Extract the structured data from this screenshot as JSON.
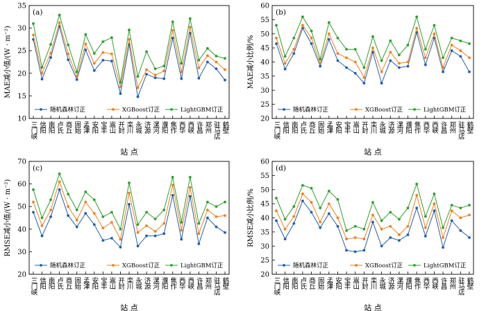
{
  "chart_data": [
    {
      "type": "line",
      "panel_label": "(a)",
      "ylabel": "MAE减小值/(W · m⁻²)",
      "xlabel": "站  点",
      "ylim": [
        10,
        35
      ],
      "yticks": [
        10,
        15,
        20,
        25,
        30,
        35
      ],
      "categories": [
        "三门峡",
        "信阳",
        "南阳",
        "卢氏",
        "商丘",
        "固始",
        "孟津",
        "安阳",
        "宝丰",
        "嵩山",
        "开封",
        "栾川",
        "永城",
        "济源",
        "漯河",
        "濮阳",
        "焦作",
        "西华",
        "西峡",
        "许昌",
        "郑州",
        "驻马店",
        "鹤壁"
      ],
      "series": [
        {
          "name": "随机森林订正",
          "color": "#1f5fad",
          "marker": "circle",
          "values": [
            27.5,
            18.7,
            23.5,
            30.4,
            23.0,
            18.6,
            25.2,
            20.6,
            22.9,
            22.7,
            15.5,
            26.4,
            14.8,
            19.8,
            19.0,
            18.8,
            27.8,
            18.8,
            28.9,
            18.9,
            22.5,
            21.0,
            18.5
          ]
        },
        {
          "name": "XGBoost订正",
          "color": "#ef7f1a",
          "marker": "circle",
          "values": [
            28.5,
            20.0,
            24.5,
            31.2,
            24.3,
            19.3,
            26.5,
            22.2,
            24.6,
            24.3,
            17.0,
            27.5,
            16.8,
            20.8,
            19.6,
            20.5,
            29.5,
            20.3,
            30.2,
            21.2,
            23.9,
            22.5,
            20.8
          ]
        },
        {
          "name": "LightGBM订正",
          "color": "#2ca02c",
          "marker": "circle",
          "values": [
            31.0,
            21.3,
            26.4,
            32.9,
            26.3,
            20.3,
            28.6,
            24.4,
            27.0,
            27.9,
            18.0,
            29.6,
            19.3,
            24.8,
            21.0,
            21.6,
            31.4,
            22.2,
            32.1,
            22.9,
            25.5,
            23.8,
            23.3
          ]
        }
      ]
    },
    {
      "type": "line",
      "panel_label": "(b)",
      "ylabel": "MAE减小比例/%",
      "xlabel": "站  点",
      "ylim": [
        20,
        60
      ],
      "yticks": [
        20,
        25,
        30,
        35,
        40,
        45,
        50,
        55,
        60
      ],
      "categories": [
        "三门峡",
        "信阳",
        "南阳",
        "卢氏",
        "商丘",
        "固始",
        "孟津",
        "安阳",
        "宝丰",
        "嵩山",
        "开封",
        "栾川",
        "永城",
        "济源",
        "漯河",
        "濮阳",
        "焦作",
        "西华",
        "西峡",
        "许昌",
        "郑州",
        "驻马店",
        "鹤壁"
      ],
      "series": [
        {
          "name": "随机森林订正",
          "color": "#1f5fad",
          "marker": "circle",
          "values": [
            46.5,
            37.5,
            43.0,
            52.0,
            46.5,
            38.5,
            48.0,
            40.5,
            38.0,
            36.0,
            32.5,
            43.5,
            32.5,
            40.5,
            38.0,
            38.5,
            50.5,
            39.0,
            48.5,
            36.5,
            44.0,
            42.0,
            36.5
          ]
        },
        {
          "name": "XGBoost订正",
          "color": "#ef7f1a",
          "marker": "circle",
          "values": [
            48.5,
            39.5,
            44.5,
            53.0,
            48.5,
            39.5,
            50.0,
            43.0,
            41.5,
            40.0,
            34.5,
            45.0,
            36.5,
            43.5,
            39.5,
            40.0,
            52.0,
            41.5,
            50.0,
            38.0,
            46.0,
            44.0,
            41.5
          ]
        },
        {
          "name": "LightGBM订正",
          "color": "#2ca02c",
          "marker": "circle",
          "values": [
            53.0,
            42.0,
            48.5,
            56.0,
            51.0,
            41.0,
            54.0,
            48.5,
            44.5,
            44.5,
            38.0,
            49.0,
            40.5,
            47.5,
            42.5,
            46.0,
            56.0,
            44.5,
            53.0,
            41.5,
            48.5,
            47.5,
            46.5
          ]
        }
      ]
    },
    {
      "type": "line",
      "panel_label": "(c)",
      "ylabel": "RMSE减小值/(W · m⁻²)",
      "xlabel": "站  点",
      "ylim": [
        20,
        70
      ],
      "yticks": [
        20,
        30,
        40,
        50,
        60,
        70
      ],
      "categories": [
        "三门峡",
        "信阳",
        "南阳",
        "卢氏",
        "商丘",
        "固始",
        "孟津",
        "安阳",
        "宝丰",
        "嵩山",
        "开封",
        "栾川",
        "永城",
        "济源",
        "漯河",
        "濮阳",
        "焦作",
        "西华",
        "西峡",
        "许昌",
        "郑州",
        "驻马店",
        "鹤壁"
      ],
      "series": [
        {
          "name": "随机森林订正",
          "color": "#1f5fad",
          "marker": "circle",
          "values": [
            47.5,
            37.0,
            45.5,
            57.5,
            46.0,
            41.0,
            47.0,
            42.0,
            35.0,
            36.0,
            32.0,
            51.0,
            32.5,
            37.0,
            37.0,
            38.0,
            55.0,
            35.5,
            54.5,
            33.5,
            45.0,
            41.0,
            38.5
          ]
        },
        {
          "name": "XGBoost订正",
          "color": "#ef7f1a",
          "marker": "circle",
          "values": [
            52.0,
            41.5,
            48.5,
            61.0,
            50.0,
            44.0,
            52.0,
            47.0,
            40.5,
            43.0,
            35.5,
            56.0,
            38.5,
            41.5,
            39.0,
            42.5,
            59.5,
            39.5,
            58.5,
            38.0,
            48.5,
            45.5,
            46.0
          ]
        },
        {
          "name": "LightGBM订正",
          "color": "#2ca02c",
          "marker": "circle",
          "values": [
            57.5,
            45.0,
            53.0,
            64.5,
            55.5,
            48.5,
            56.5,
            53.0,
            45.5,
            47.5,
            40.0,
            60.5,
            42.0,
            47.5,
            44.5,
            48.5,
            63.0,
            43.0,
            63.0,
            42.5,
            52.0,
            50.0,
            52.0
          ]
        }
      ]
    },
    {
      "type": "line",
      "panel_label": "(d)",
      "ylabel": "RMSE减小比例/%",
      "xlabel": "站  点",
      "ylim": [
        20,
        60
      ],
      "yticks": [
        20,
        25,
        30,
        35,
        40,
        45,
        50,
        55,
        60
      ],
      "categories": [
        "三门峡",
        "信阳",
        "南阳",
        "卢氏",
        "商丘",
        "固始",
        "孟津",
        "安阳",
        "宝丰",
        "嵩山",
        "开封",
        "栾川",
        "永城",
        "济源",
        "漯河",
        "濮阳",
        "焦作",
        "西华",
        "西峡",
        "许昌",
        "郑州",
        "驻马店",
        "鹤壁"
      ],
      "series": [
        {
          "name": "随机森林订正",
          "color": "#1f5fad",
          "marker": "circle",
          "values": [
            39.0,
            32.5,
            38.0,
            46.0,
            42.0,
            36.5,
            41.5,
            37.0,
            28.5,
            28.0,
            28.5,
            38.5,
            30.0,
            33.0,
            32.0,
            34.0,
            43.5,
            33.5,
            42.5,
            29.5,
            39.0,
            35.5,
            33.0
          ]
        },
        {
          "name": "XGBoost订正",
          "color": "#ef7f1a",
          "marker": "circle",
          "values": [
            42.5,
            36.0,
            40.5,
            48.5,
            45.5,
            38.5,
            45.0,
            40.0,
            32.5,
            33.0,
            32.5,
            41.0,
            36.0,
            37.0,
            34.0,
            37.0,
            48.0,
            36.5,
            45.0,
            33.0,
            42.5,
            40.0,
            41.0
          ]
        },
        {
          "name": "LightGBM订正",
          "color": "#2ca02c",
          "marker": "circle",
          "values": [
            47.0,
            39.5,
            44.0,
            51.5,
            50.5,
            43.5,
            49.5,
            46.5,
            35.5,
            37.0,
            36.0,
            45.5,
            39.0,
            42.0,
            39.5,
            43.5,
            52.0,
            40.5,
            48.5,
            36.5,
            44.5,
            43.5,
            44.5
          ]
        }
      ]
    }
  ]
}
